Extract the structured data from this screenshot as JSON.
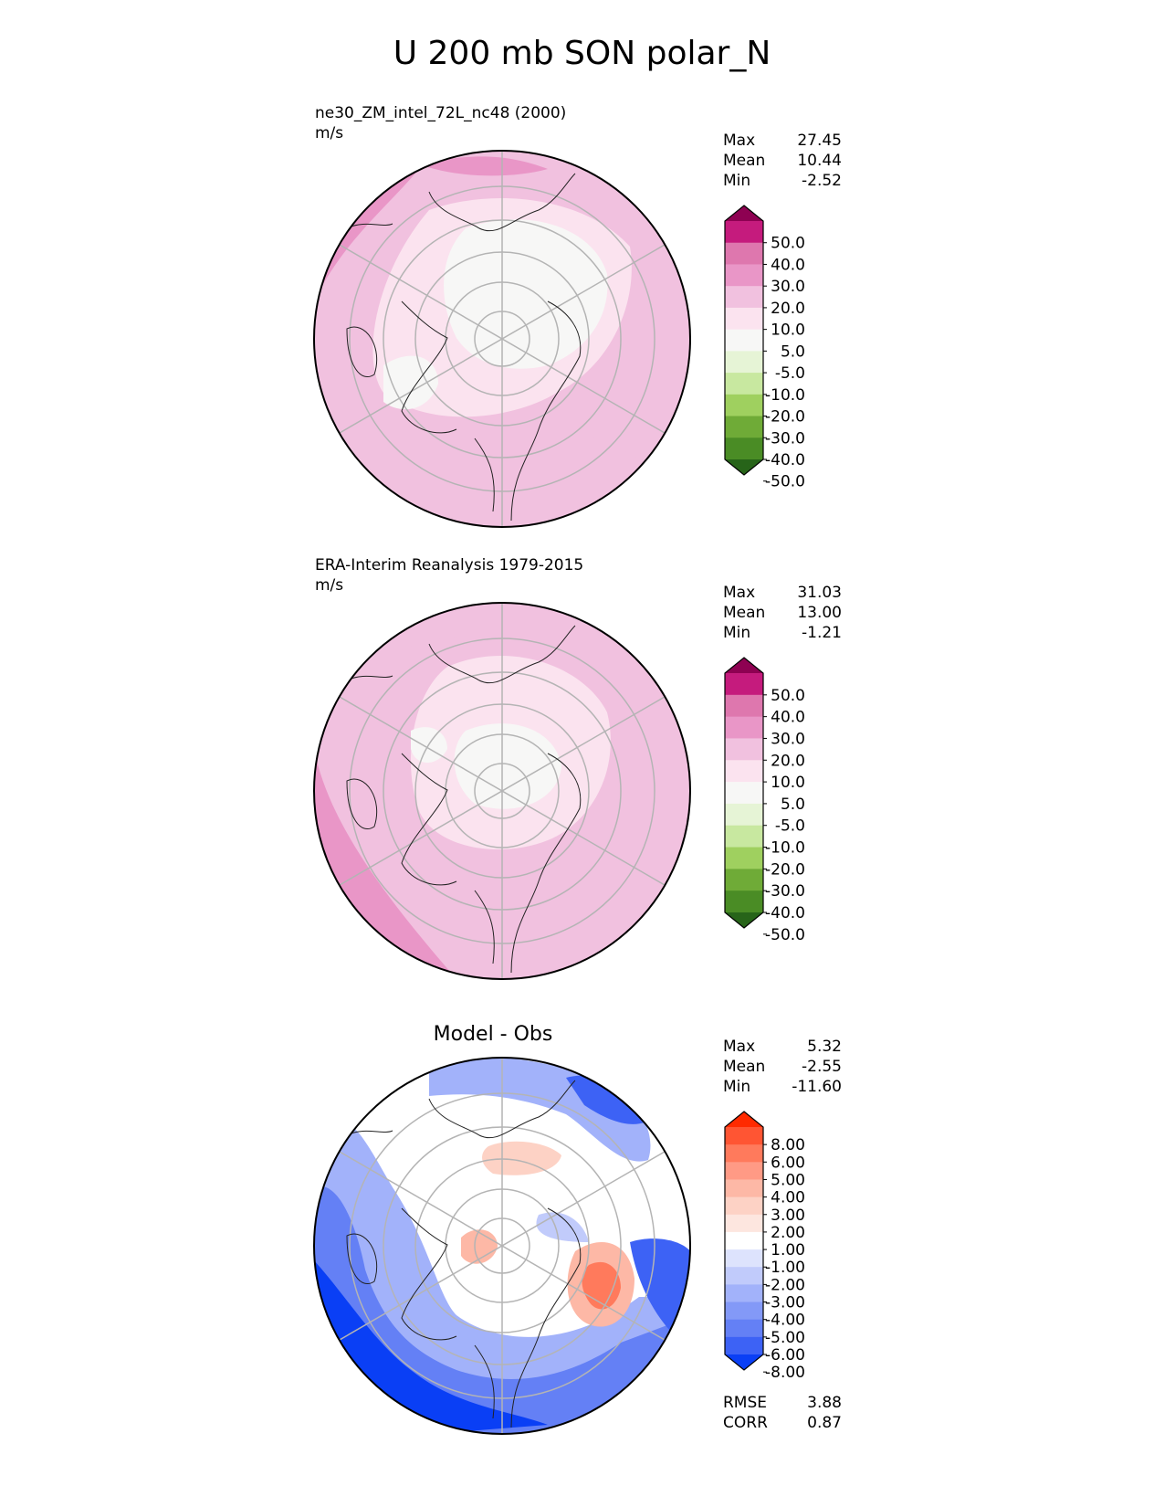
{
  "figure": {
    "title": "U 200 mb SON polar_N"
  },
  "chart_data": [
    {
      "type": "heatmap",
      "projection": "north polar stereographic",
      "title": "ne30_ZM_intel_72L_nc48 (2000)",
      "units": "m/s",
      "stats": {
        "max_label": "Max",
        "max": "27.45",
        "mean_label": "Mean",
        "mean": "10.44",
        "min_label": "Min",
        "min": "-2.52"
      },
      "colorbar": {
        "ticks": [
          "50.0",
          "40.0",
          "30.0",
          "20.0",
          "10.0",
          "5.0",
          "-5.0",
          "-10.0",
          "-20.0",
          "-30.0",
          "-40.0",
          "-50.0"
        ],
        "colors": [
          "#8e0152",
          "#c51b7d",
          "#de77ae",
          "#e996c7",
          "#f1c1df",
          "#fbe3ef",
          "#f7f7f6",
          "#e6f4d6",
          "#c8e8a0",
          "#9fd05f",
          "#6fab37",
          "#4a8c25",
          "#276419"
        ]
      }
    },
    {
      "type": "heatmap",
      "projection": "north polar stereographic",
      "title": "ERA-Interim Reanalysis 1979-2015",
      "units": "m/s",
      "stats": {
        "max_label": "Max",
        "max": "31.03",
        "mean_label": "Mean",
        "mean": "13.00",
        "min_label": "Min",
        "min": "-1.21"
      },
      "colorbar": {
        "ticks": [
          "50.0",
          "40.0",
          "30.0",
          "20.0",
          "10.0",
          "5.0",
          "-5.0",
          "-10.0",
          "-20.0",
          "-30.0",
          "-40.0",
          "-50.0"
        ],
        "colors": [
          "#8e0152",
          "#c51b7d",
          "#de77ae",
          "#e996c7",
          "#f1c1df",
          "#fbe3ef",
          "#f7f7f6",
          "#e6f4d6",
          "#c8e8a0",
          "#9fd05f",
          "#6fab37",
          "#4a8c25",
          "#276419"
        ]
      }
    },
    {
      "type": "heatmap",
      "projection": "north polar stereographic",
      "title": "Model - Obs",
      "stats": {
        "max_label": "Max",
        "max": "5.32",
        "mean_label": "Mean",
        "mean": "-2.55",
        "min_label": "Min",
        "min": "-11.60"
      },
      "metrics": {
        "rmse_label": "RMSE",
        "rmse": "3.88",
        "corr_label": "CORR",
        "corr": "0.87"
      },
      "colorbar": {
        "ticks": [
          "8.00",
          "6.00",
          "5.00",
          "4.00",
          "3.00",
          "2.00",
          "1.00",
          "-1.00",
          "-2.00",
          "-3.00",
          "-4.00",
          "-5.00",
          "-6.00",
          "-8.00"
        ],
        "colors": [
          "#ff2a00",
          "#ff5533",
          "#ff7a5c",
          "#ff9a85",
          "#fdb8a6",
          "#fdd2c5",
          "#fde6df",
          "#ffffff",
          "#dde3fd",
          "#c1cbfb",
          "#a2b2fa",
          "#8399f7",
          "#6480f5",
          "#3d62f5",
          "#0a3ff5"
        ]
      }
    }
  ]
}
